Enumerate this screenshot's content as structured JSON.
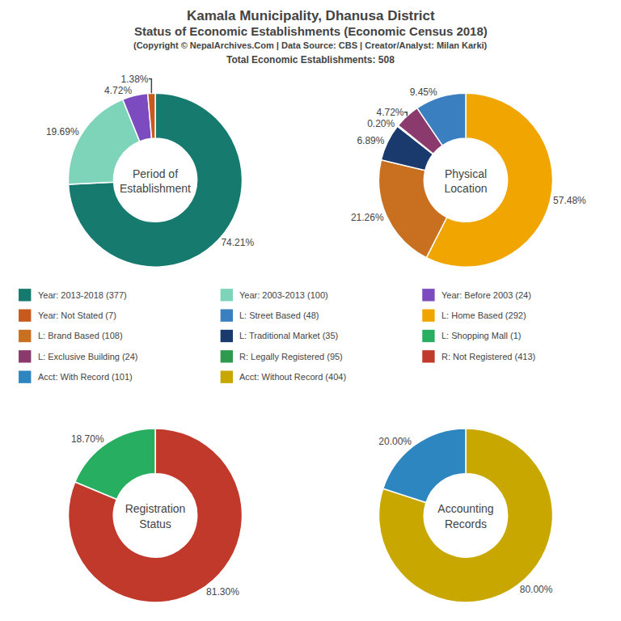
{
  "title": [
    "Kamala Municipality, Dhanusa District",
    "Status of Economic Establishments (Economic Census 2018)"
  ],
  "subtitle": [
    "(Copyright © NepalArchives.Com | Data Source: CBS | Creator/Analyst: Milan Karki)",
    "Total Economic Establishments: 508"
  ],
  "series": [
    {
      "name": "Year: 2013-2018 (377)",
      "color": "#177a6e"
    },
    {
      "name": "Year: 2003-2013 (100)",
      "color": "#7dd4b8"
    },
    {
      "name": "Year: Before 2003 (24)",
      "color": "#7b4bbf"
    },
    {
      "name": "Year: Not Stated (7)",
      "color": "#c85a1e"
    },
    {
      "name": "L: Street Based (48)",
      "color": "#3a7fbf"
    },
    {
      "name": "L: Home Based (292)",
      "color": "#f0a500"
    },
    {
      "name": "L: Brand Based (108)",
      "color": "#c87020"
    },
    {
      "name": "L: Traditional Market (35)",
      "color": "#1a3a6e"
    },
    {
      "name": "L: Shopping Mall (1)",
      "color": "#27ae60"
    },
    {
      "name": "L: Exclusive Building (24)",
      "color": "#8b3a6e"
    },
    {
      "name": "R: Legally Registered (95)",
      "color": "#2e9a4e"
    },
    {
      "name": "R: Not Registered (413)",
      "color": "#c0392b"
    },
    {
      "name": "Acct: With Record (101)",
      "color": "#2e86c1"
    },
    {
      "name": "Acct: Without Record (404)",
      "color": "#c8a800"
    }
  ],
  "chart_data": [
    {
      "type": "pie",
      "title": "Period of\nEstablishment",
      "values": [
        74.21,
        19.69,
        4.72,
        1.38
      ],
      "value_labels": [
        "74.21%",
        "19.69%",
        "4.72%",
        "1.38%"
      ],
      "colors": [
        "#177a6e",
        "#7dd4b8",
        "#7b4bbf",
        "#c85a1e"
      ],
      "data_labels": true
    },
    {
      "type": "pie",
      "title": "Physical\nLocation",
      "values": [
        57.48,
        21.26,
        6.89,
        0.2,
        4.72,
        9.45
      ],
      "value_labels": [
        "57.48%",
        "21.26%",
        "6.89%",
        "0.20%",
        "4.72%",
        "9.45%"
      ],
      "colors": [
        "#f0a500",
        "#c87020",
        "#1a3a6e",
        "#27ae60",
        "#8b3a6e",
        "#3a7fbf"
      ],
      "data_labels": true
    },
    {
      "type": "pie",
      "title": "Registration\nStatus",
      "values": [
        81.3,
        18.7
      ],
      "value_labels": [
        "81.30%",
        "18.70%"
      ],
      "colors": [
        "#c0392b",
        "#27ae60"
      ],
      "data_labels": true
    },
    {
      "type": "pie",
      "title": "Accounting\nRecords",
      "values": [
        80.0,
        20.0
      ],
      "value_labels": [
        "80.00%",
        "20.00%"
      ],
      "colors": [
        "#c8a800",
        "#2e86c1"
      ],
      "data_labels": true
    }
  ]
}
